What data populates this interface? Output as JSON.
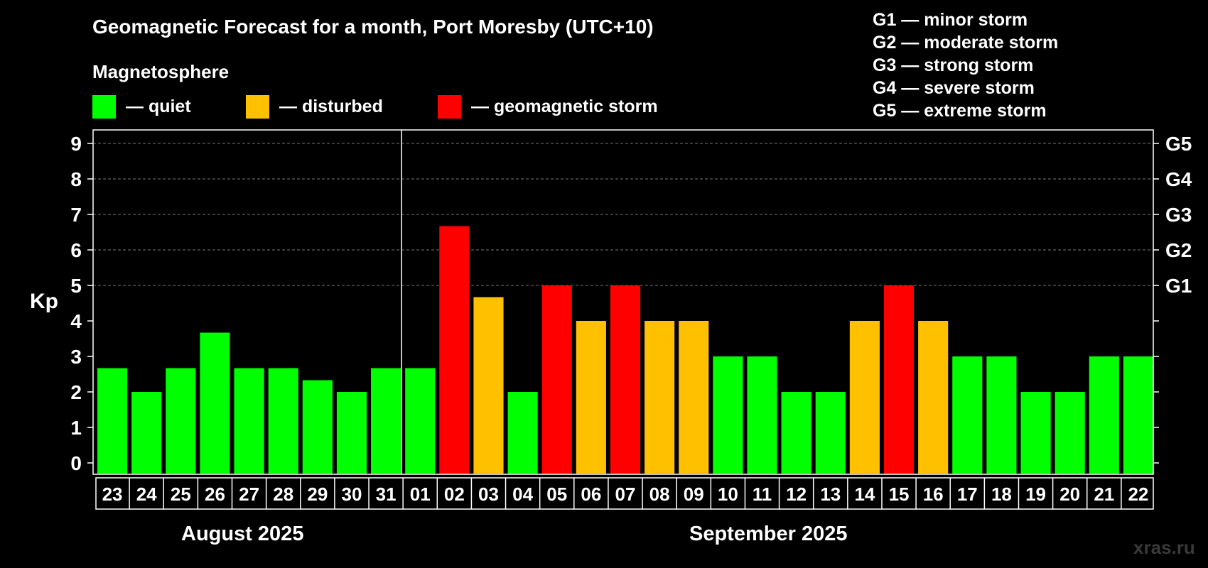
{
  "title": "Geomagnetic Forecast for a month, Port Moresby (UTC+10)",
  "legend": {
    "title": "Magnetosphere",
    "items": [
      {
        "label": "— quiet",
        "color": "#00ff00"
      },
      {
        "label": "— disturbed",
        "color": "#ffc000"
      },
      {
        "label": "— geomagnetic storm",
        "color": "#ff0000"
      }
    ]
  },
  "storm_levels": [
    "G1 — minor storm",
    "G2 — moderate storm",
    "G3 — strong storm",
    "G4 — severe storm",
    "G5 — extreme storm"
  ],
  "credit": "xras.ru",
  "chart_data": {
    "type": "bar",
    "ylabel": "Kp",
    "ylim": [
      0,
      9
    ],
    "grid": true,
    "y_ticks": [
      0,
      1,
      2,
      3,
      4,
      5,
      6,
      7,
      8,
      9
    ],
    "right_axis_labels": [
      {
        "y": 5,
        "label": "G1"
      },
      {
        "y": 6,
        "label": "G2"
      },
      {
        "y": 7,
        "label": "G3"
      },
      {
        "y": 8,
        "label": "G4"
      },
      {
        "y": 9,
        "label": "G5"
      }
    ],
    "months": [
      {
        "label": "August 2025",
        "days": 9
      },
      {
        "label": "September 2025",
        "days": 22
      }
    ],
    "categories": [
      "23",
      "24",
      "25",
      "26",
      "27",
      "28",
      "29",
      "30",
      "31",
      "01",
      "02",
      "03",
      "04",
      "05",
      "06",
      "07",
      "08",
      "09",
      "10",
      "11",
      "12",
      "13",
      "14",
      "15",
      "16",
      "17",
      "18",
      "19",
      "20",
      "21",
      "22"
    ],
    "values": [
      2.67,
      2,
      2.67,
      3.67,
      2.67,
      2.67,
      2.33,
      2,
      2.67,
      2.67,
      6.67,
      4.67,
      2,
      5,
      4,
      5,
      4,
      4,
      3,
      3,
      2,
      2,
      4,
      5,
      4,
      3,
      3,
      2,
      2,
      3,
      3
    ],
    "colors": {
      "quiet": "#00ff00",
      "disturbed": "#ffc000",
      "storm": "#ff0000"
    }
  }
}
